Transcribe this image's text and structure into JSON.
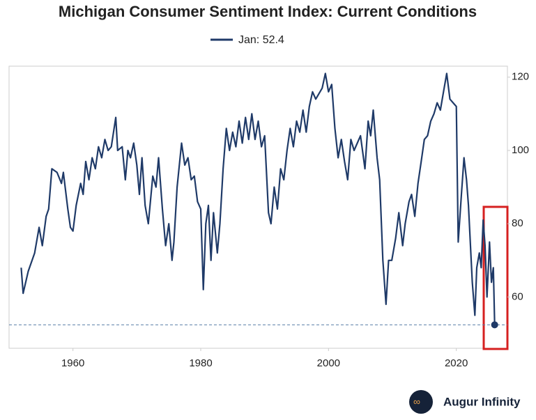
{
  "chart_data": {
    "type": "line",
    "title": "Michigan Consumer Sentiment Index: Current Conditions",
    "x": [
      1951.9,
      1952.2,
      1953,
      1954,
      1954.7,
      1955.2,
      1955.8,
      1956.2,
      1956.7,
      1957.5,
      1958.2,
      1958.5,
      1959.2,
      1959.6,
      1960,
      1960.5,
      1961.2,
      1961.6,
      1962,
      1962.5,
      1963,
      1963.5,
      1964,
      1964.5,
      1965,
      1965.5,
      1966,
      1966.7,
      1967,
      1967.7,
      1968.2,
      1968.6,
      1969,
      1969.5,
      1970,
      1970.4,
      1970.8,
      1971.3,
      1971.8,
      1972.5,
      1973,
      1973.4,
      1974,
      1974.5,
      1975,
      1975.5,
      1975.8,
      1976.3,
      1977,
      1977.5,
      1978,
      1978.5,
      1979,
      1979.5,
      1980,
      1980.4,
      1980.8,
      1981.2,
      1981.6,
      1982,
      1982.6,
      1983,
      1983.5,
      1984,
      1984.5,
      1985,
      1985.5,
      1986,
      1986.5,
      1987,
      1987.5,
      1988,
      1988.5,
      1989,
      1989.5,
      1990,
      1990.6,
      1991,
      1991.5,
      1992,
      1992.5,
      1993,
      1993.5,
      1994,
      1994.5,
      1995,
      1995.5,
      1996,
      1996.5,
      1997,
      1997.5,
      1998,
      1999,
      1999.5,
      2000,
      2000.5,
      2001,
      2001.5,
      2002,
      2002.5,
      2003,
      2003.5,
      2004,
      2005,
      2005.7,
      2006.2,
      2006.6,
      2007,
      2007.6,
      2008,
      2008.5,
      2009,
      2009.4,
      2009.9,
      2010.5,
      2011,
      2011.6,
      2012,
      2012.6,
      2013,
      2013.5,
      2014,
      2014.5,
      2015,
      2015.5,
      2016,
      2016.5,
      2017,
      2017.5,
      2018,
      2018.5,
      2019,
      2019.5,
      2020,
      2020.3,
      2020.8,
      2021.2,
      2021.6,
      2021.9,
      2022.5,
      2022.9,
      2023.2,
      2023.6,
      2023.9,
      2024.2,
      2024.5,
      2024.8,
      2025.2,
      2025.5,
      2025.8,
      2026.0
    ],
    "series": [
      {
        "name": "Jan: 52.4",
        "color": "#1f3a68",
        "values": [
          68,
          61,
          67,
          72,
          79,
          74,
          82,
          84,
          95,
          94,
          91,
          94,
          84,
          79,
          78,
          85,
          91,
          88,
          97,
          92,
          98,
          95,
          101,
          98,
          103,
          100,
          101,
          109,
          100,
          101,
          92,
          100,
          98,
          102,
          96,
          88,
          98,
          85,
          80,
          93,
          90,
          98,
          84,
          74,
          80,
          70,
          75,
          90,
          102,
          96,
          98,
          92,
          93,
          86,
          84,
          62,
          80,
          85,
          70,
          83,
          72,
          80,
          95,
          106,
          100,
          105,
          101,
          108,
          102,
          109,
          103,
          110,
          103,
          108,
          101,
          104,
          83,
          80,
          90,
          84,
          95,
          92,
          100,
          106,
          101,
          108,
          105,
          111,
          105,
          112,
          116,
          114,
          117,
          121,
          116,
          118,
          106,
          98,
          103,
          97,
          92,
          103,
          100,
          104,
          95,
          108,
          104,
          111,
          98,
          92,
          70,
          58,
          70,
          70,
          76,
          83,
          74,
          80,
          86,
          88,
          82,
          91,
          97,
          103,
          104,
          108,
          110,
          113,
          111,
          116,
          121,
          114,
          113,
          112,
          75,
          88,
          98,
          92,
          85,
          64,
          55,
          68,
          72,
          68,
          81,
          74,
          60,
          75,
          64,
          68,
          52.4
        ]
      }
    ],
    "xlim": [
      1950,
      2028
    ],
    "ylim": [
      46,
      123
    ],
    "xticks": [
      1960,
      1980,
      2000,
      2020
    ],
    "yticks": [
      60,
      80,
      100,
      120
    ],
    "brand": "Augur Infinity"
  }
}
